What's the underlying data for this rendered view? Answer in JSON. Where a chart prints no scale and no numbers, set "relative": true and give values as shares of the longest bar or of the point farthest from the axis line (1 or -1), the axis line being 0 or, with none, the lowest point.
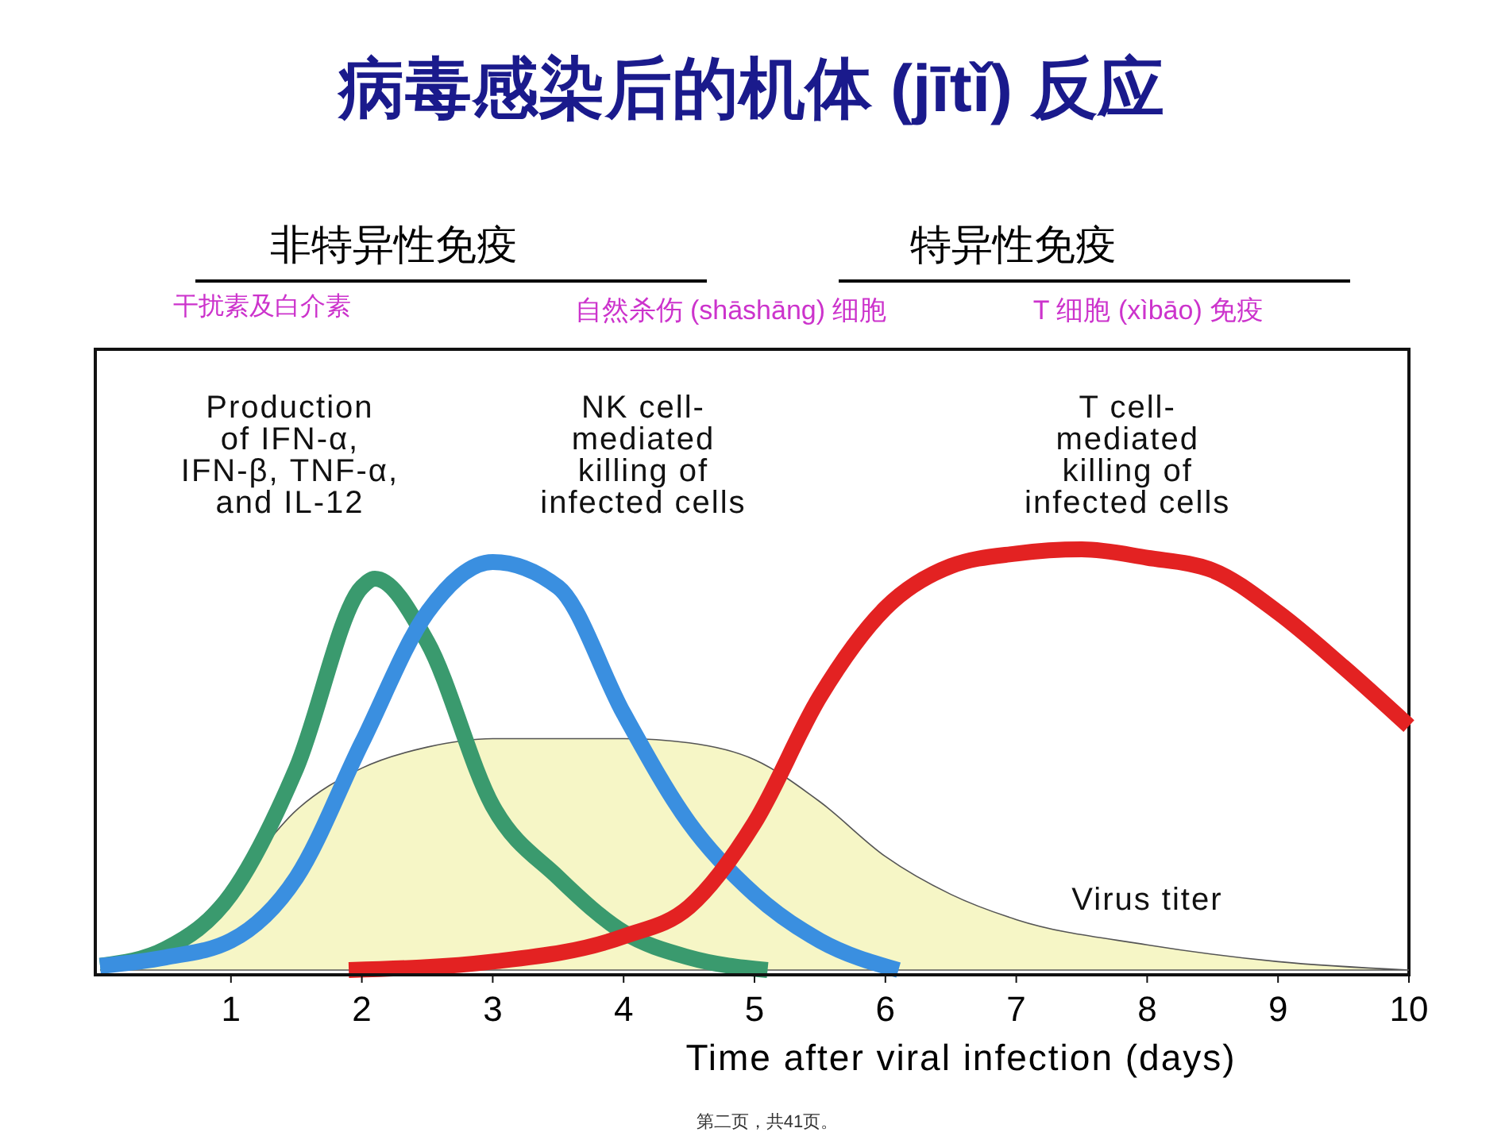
{
  "chart_data": {
    "type": "line",
    "title": "病毒感染后的机体 (jītǐ) 反应",
    "xlabel": "Time after viral infection (days)",
    "relative": true,
    "xlim": [
      0,
      10
    ],
    "xticks": [
      1,
      2,
      3,
      4,
      5,
      6,
      7,
      8,
      9,
      10
    ],
    "grid": false,
    "line_style": "solid",
    "annotations": [
      "非特异性免疫",
      "特异性免疫",
      "干扰素及白介素",
      "自然杀伤 (shāshāng) 细胞",
      "T 细胞 (xìbāo) 免疫",
      "第二页，共41页。"
    ],
    "series": [
      {
        "name": "Virus titer",
        "type": "area",
        "color": "#f6f6c6",
        "x": [
          0,
          0.5,
          1,
          1.5,
          2,
          2.5,
          3,
          3.5,
          4,
          4.5,
          5,
          5.5,
          6,
          6.5,
          7,
          8,
          9,
          10
        ],
        "values": [
          0,
          0.05,
          0.2,
          0.38,
          0.48,
          0.53,
          0.55,
          0.55,
          0.55,
          0.54,
          0.5,
          0.4,
          0.27,
          0.18,
          0.12,
          0.06,
          0.02,
          0
        ]
      },
      {
        "name": "Production\nof IFN-α,\nIFN-β, TNF-α,\nand IL-12",
        "color": "#3a9a6e",
        "x": [
          0,
          0.5,
          1,
          1.5,
          2,
          2.1,
          2.5,
          3,
          3.5,
          4,
          4.5,
          5.1
        ],
        "values": [
          0.01,
          0.05,
          0.18,
          0.48,
          0.91,
          0.93,
          0.78,
          0.39,
          0.22,
          0.09,
          0.03,
          0
        ]
      },
      {
        "name": "NK cell-\nmediated\nkilling of\ninfected cells",
        "color": "#3a8fe0",
        "x": [
          0,
          0.5,
          1,
          1.5,
          2,
          2.5,
          3,
          3.5,
          4,
          4.5,
          5,
          5.5,
          6.1
        ],
        "values": [
          0.01,
          0.03,
          0.07,
          0.22,
          0.54,
          0.85,
          0.97,
          0.91,
          0.61,
          0.35,
          0.18,
          0.07,
          0
        ]
      },
      {
        "name": "T cell-\nmediated\nkilling of\ninfected cells",
        "color": "#e32222",
        "x": [
          1.9,
          3,
          4,
          4.5,
          5,
          5.5,
          6,
          6.5,
          7,
          7.5,
          8,
          8.5,
          9,
          9.5,
          10
        ],
        "values": [
          0,
          0.02,
          0.08,
          0.15,
          0.35,
          0.65,
          0.86,
          0.96,
          0.99,
          1,
          0.98,
          0.95,
          0.85,
          0.72,
          0.58
        ]
      }
    ]
  }
}
